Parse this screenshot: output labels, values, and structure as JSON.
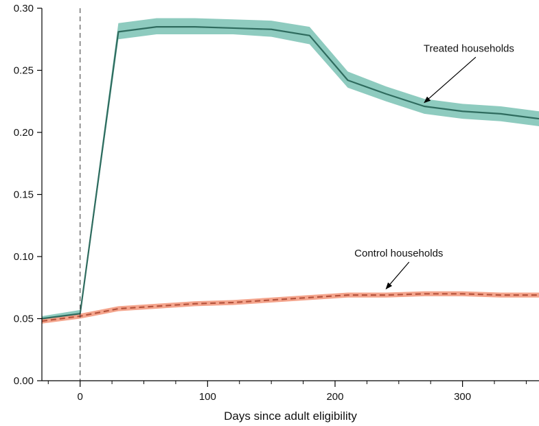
{
  "chart_data": {
    "type": "line",
    "title": "",
    "xlabel": "Days since adult eligibility",
    "ylabel": "",
    "xlim": [
      -30,
      360
    ],
    "ylim": [
      0,
      0.3
    ],
    "x_major_ticks": [
      0,
      100,
      200,
      300
    ],
    "x_tick_labels": [
      "0",
      "100",
      "200",
      "300"
    ],
    "x_minor_ticks": [
      -25,
      25,
      50,
      75,
      125,
      150,
      175,
      225,
      250,
      275,
      325,
      350
    ],
    "y_ticks": [
      0,
      0.05,
      0.1,
      0.15,
      0.2,
      0.25,
      0.3
    ],
    "y_tick_labels": [
      "0.00",
      "0.05",
      "0.10",
      "0.15",
      "0.20",
      "0.25",
      "0.30"
    ],
    "grid": false,
    "legend": "none",
    "reference_line": {
      "axis": "x",
      "value": 0,
      "style": "dashed"
    },
    "x": [
      -30,
      0,
      30,
      60,
      90,
      120,
      150,
      180,
      210,
      240,
      270,
      300,
      330,
      360
    ],
    "series": [
      {
        "name": "Treated households",
        "style": "solid",
        "color": "#2e6b5e",
        "band_color": "#8ecbbf",
        "values": [
          0.05,
          0.054,
          0.281,
          0.285,
          0.285,
          0.284,
          0.283,
          0.278,
          0.242,
          0.231,
          0.221,
          0.217,
          0.215,
          0.211
        ],
        "lower": [
          0.048,
          0.051,
          0.275,
          0.279,
          0.279,
          0.279,
          0.277,
          0.271,
          0.236,
          0.225,
          0.215,
          0.211,
          0.209,
          0.205
        ],
        "upper": [
          0.052,
          0.057,
          0.288,
          0.292,
          0.292,
          0.291,
          0.29,
          0.285,
          0.249,
          0.237,
          0.227,
          0.223,
          0.221,
          0.217
        ]
      },
      {
        "name": "Control households",
        "style": "dashed",
        "color": "#b5533c",
        "band_color": "#f4a58d",
        "values": [
          0.048,
          0.052,
          0.058,
          0.06,
          0.062,
          0.063,
          0.065,
          0.067,
          0.069,
          0.069,
          0.07,
          0.07,
          0.069,
          0.069
        ],
        "lower": [
          0.046,
          0.05,
          0.056,
          0.058,
          0.06,
          0.061,
          0.063,
          0.065,
          0.067,
          0.067,
          0.068,
          0.068,
          0.067,
          0.067
        ],
        "upper": [
          0.05,
          0.054,
          0.06,
          0.062,
          0.064,
          0.065,
          0.067,
          0.069,
          0.071,
          0.071,
          0.072,
          0.072,
          0.071,
          0.071
        ]
      }
    ],
    "annotations": [
      {
        "text": "Treated households",
        "series": 0,
        "arrow_to_x": 270,
        "arrow_to_y": 0.224,
        "label_x": 305,
        "label_y": 0.265
      },
      {
        "text": "Control households",
        "series": 1,
        "arrow_to_x": 240,
        "arrow_to_y": 0.074,
        "label_x": 250,
        "label_y": 0.1
      }
    ]
  }
}
